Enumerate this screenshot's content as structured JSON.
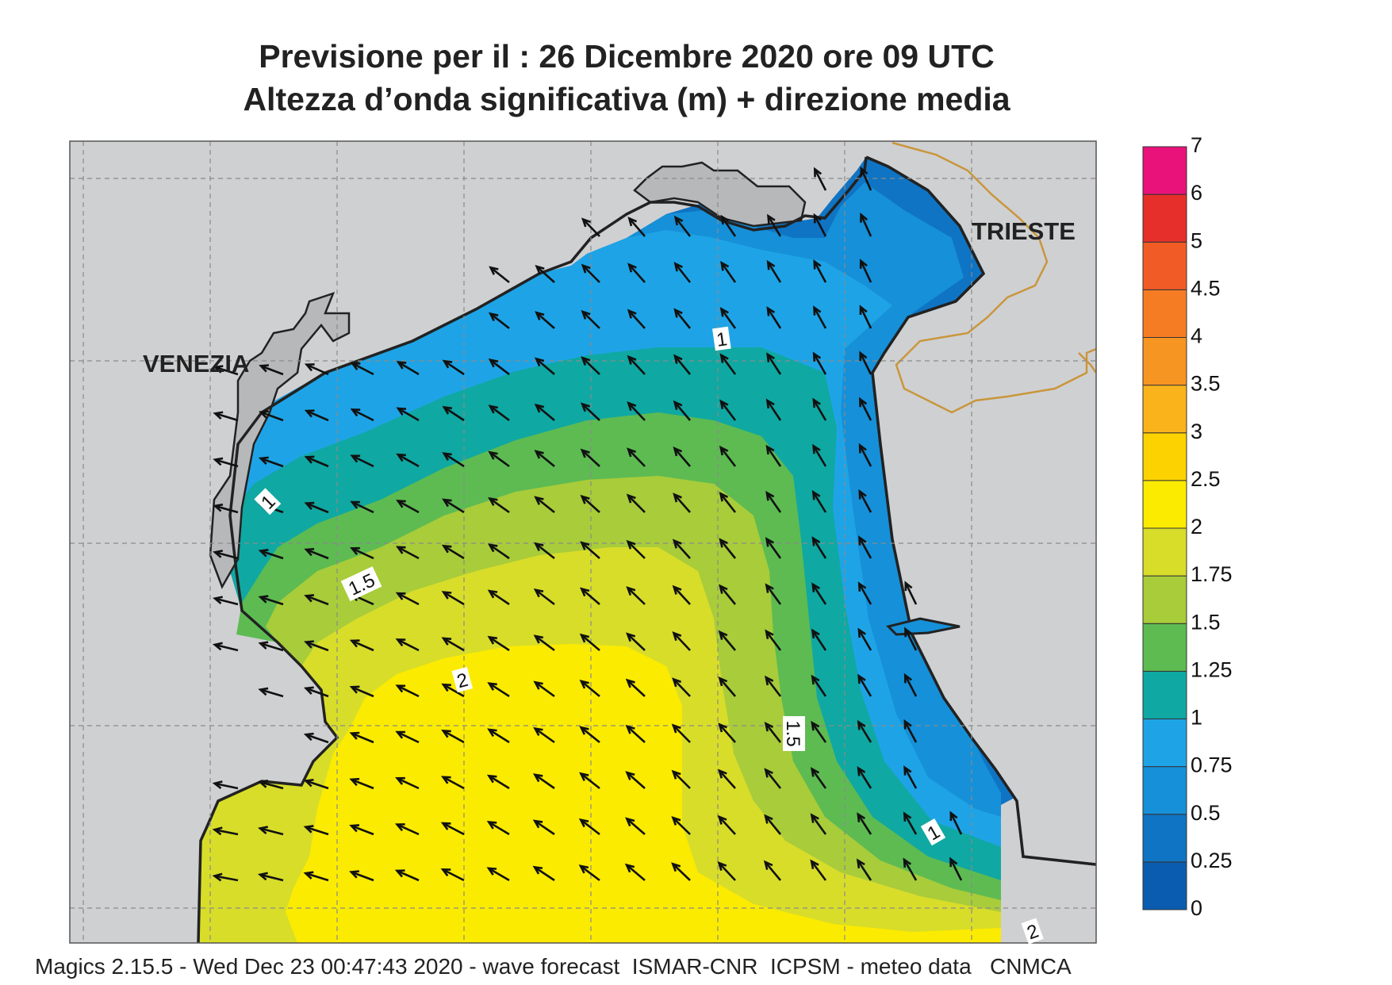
{
  "header": {
    "line1": "Previsione per il  :  26 Dicembre  2020   ore 09 UTC",
    "line2": "Altezza d’onda significativa (m) + direzione media"
  },
  "cities": {
    "venezia": "VENEZIA",
    "trieste": "TRIESTE"
  },
  "contour_labels": {
    "venezia_coast": "1",
    "north": "1",
    "west_mid": "1.5",
    "center": "2",
    "east_mid": "1.5",
    "southeast": "1",
    "south": "2"
  },
  "colorbar": {
    "ticks": [
      "0",
      "0.25",
      "0.5",
      "0.75",
      "1",
      "1.25",
      "1.5",
      "1.75",
      "2",
      "2.5",
      "3",
      "3.5",
      "4",
      "4.5",
      "5",
      "6",
      "7"
    ],
    "colors": [
      "#0a5cb0",
      "#0f74c4",
      "#1690d8",
      "#1ea4e6",
      "#10a8a2",
      "#5dbb52",
      "#a8cc3a",
      "#d8dd2a",
      "#fbeb00",
      "#fcd300",
      "#fbb31c",
      "#f79522",
      "#f67c24",
      "#f15c26",
      "#e62f2a",
      "#e8127a"
    ]
  },
  "footer": "Magics 2.15.5 - Wed Dec 23 00:47:43 2020 - wave forecast  ISMAR-CNR  ICPSM - meteo data   CNMCA"
}
